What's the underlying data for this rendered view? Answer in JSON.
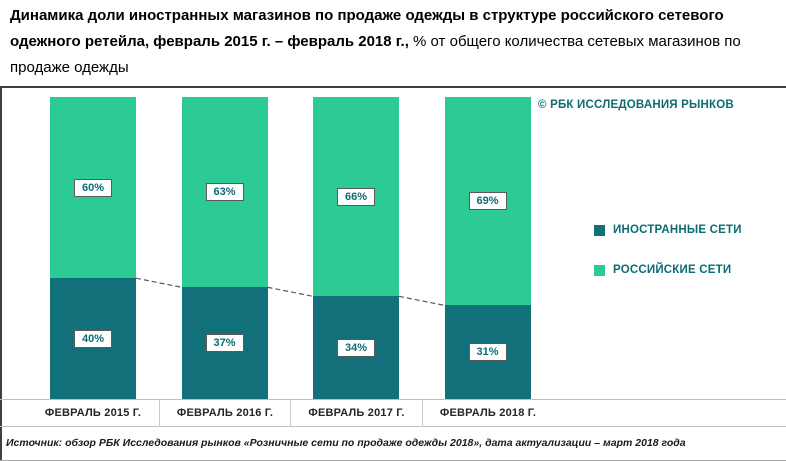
{
  "title": {
    "bold": "Динамика доли иностранных магазинов по продаже одежды в структуре российского сетевого одежного ретейла, февраль 2015 г. – февраль 2018 г.,",
    "regular": " % от общего количества сетевых магазинов по продаже одежды"
  },
  "copyright": "© РБК ИССЛЕДОВАНИЯ РЫНКОВ",
  "legend": [
    {
      "label": "ИНОСТРАННЫЕ СЕТИ",
      "color": "#11707a"
    },
    {
      "label": "РОССИЙСКИЕ СЕТИ",
      "color": "#2bcb93"
    }
  ],
  "source": "Источник: обзор РБК Исследования рынков «Розничные сети по продаже одежды 2018», дата актуализации – март 2018 года",
  "chart_data": {
    "type": "bar",
    "subtype": "stacked-100-percent",
    "categories": [
      "ФЕВРАЛЬ 2015 Г.",
      "ФЕВРАЛЬ 2016 Г.",
      "ФЕВРАЛЬ 2017 Г.",
      "ФЕВРАЛЬ 2018 Г."
    ],
    "series": [
      {
        "name": "ИНОСТРАННЫЕ СЕТИ",
        "values": [
          40,
          37,
          34,
          31
        ],
        "color": "#11707a"
      },
      {
        "name": "РОССИЙСКИЕ СЕТИ",
        "values": [
          60,
          63,
          66,
          69
        ],
        "color": "#2bcb93"
      }
    ],
    "value_suffix": "%",
    "ylim": [
      0,
      100
    ],
    "grid": false,
    "legend_position": "right",
    "annotations": "dashed trend line along boundary between foreign and russian segments"
  }
}
